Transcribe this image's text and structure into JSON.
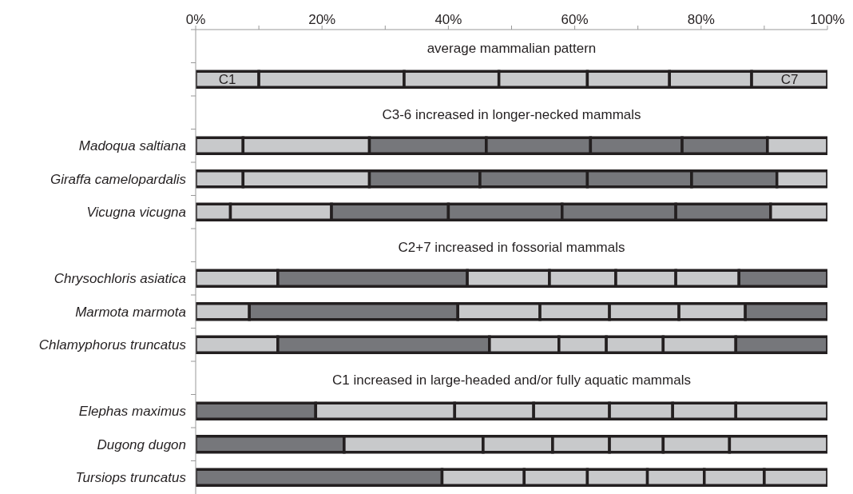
{
  "chart_data": {
    "type": "bar",
    "stacked": true,
    "orientation": "horizontal",
    "categories": [
      null,
      null,
      null,
      "Madoqua saltiana",
      "Giraffa camelopardalis",
      "Vicugna vicugna",
      null,
      "Chrysochloris asiatica",
      "Marmota marmota",
      "Chlamyphorus truncatus",
      null,
      "Elephas maximus",
      "Dugong dugon",
      "Tursiops truncatus"
    ],
    "series": [
      {
        "name": "C1",
        "values": [
          null,
          10,
          null,
          7.5,
          7.5,
          5.5,
          null,
          13,
          8.5,
          13,
          null,
          19,
          23.5,
          39
        ],
        "colors": [
          null,
          "#c8c9cb",
          null,
          "#c8c9cb",
          "#c8c9cb",
          "#c8c9cb",
          null,
          "#c8c9cb",
          "#c8c9cb",
          "#c8c9cb",
          null,
          "#76777b",
          "#76777b",
          "#76777b"
        ]
      },
      {
        "values": [
          null,
          23,
          null,
          20,
          20,
          16,
          null,
          30,
          33,
          33.5,
          null,
          22,
          22,
          13
        ],
        "colors": [
          null,
          "#c8c9cb",
          null,
          "#c8c9cb",
          "#c8c9cb",
          "#c8c9cb",
          null,
          "#76777b",
          "#76777b",
          "#76777b",
          null,
          "#c8c9cb",
          "#c8c9cb",
          "#c8c9cb"
        ]
      },
      {
        "values": [
          null,
          15,
          null,
          18.5,
          17.5,
          18.5,
          null,
          13,
          13,
          11,
          null,
          12.5,
          11,
          10
        ],
        "colors": [
          null,
          "#c8c9cb",
          null,
          "#76777b",
          "#76777b",
          "#76777b",
          null,
          "#c8c9cb",
          "#c8c9cb",
          "#c8c9cb",
          null,
          "#c8c9cb",
          "#c8c9cb",
          "#c8c9cb"
        ]
      },
      {
        "values": [
          null,
          14,
          null,
          16.5,
          17,
          18,
          null,
          10.5,
          11,
          7.5,
          null,
          12,
          9,
          9.5
        ],
        "colors": [
          null,
          "#c8c9cb",
          null,
          "#76777b",
          "#76777b",
          "#76777b",
          null,
          "#c8c9cb",
          "#c8c9cb",
          "#c8c9cb",
          null,
          "#c8c9cb",
          "#c8c9cb",
          "#c8c9cb"
        ]
      },
      {
        "values": [
          null,
          13,
          null,
          14.5,
          16.5,
          18,
          null,
          9.5,
          11,
          9,
          null,
          10,
          8.5,
          9
        ],
        "colors": [
          null,
          "#c8c9cb",
          null,
          "#76777b",
          "#76777b",
          "#76777b",
          null,
          "#c8c9cb",
          "#c8c9cb",
          "#c8c9cb",
          null,
          "#c8c9cb",
          "#c8c9cb",
          "#c8c9cb"
        ]
      },
      {
        "values": [
          null,
          13,
          null,
          13.5,
          13.5,
          15,
          null,
          10,
          10.5,
          11.5,
          null,
          10,
          10.5,
          9.5
        ],
        "colors": [
          null,
          "#c8c9cb",
          null,
          "#76777b",
          "#76777b",
          "#76777b",
          null,
          "#c8c9cb",
          "#c8c9cb",
          "#c8c9cb",
          null,
          "#c8c9cb",
          "#c8c9cb",
          "#c8c9cb"
        ]
      },
      {
        "name": "C7",
        "values": [
          null,
          12,
          null,
          9.5,
          8,
          9,
          null,
          14,
          13,
          14.5,
          null,
          14.5,
          15.5,
          10
        ],
        "colors": [
          null,
          "#c8c9cb",
          null,
          "#c8c9cb",
          "#c8c9cb",
          "#c8c9cb",
          null,
          "#76777b",
          "#76777b",
          "#76777b",
          null,
          "#c8c9cb",
          "#c8c9cb",
          "#c8c9cb"
        ]
      }
    ],
    "xlim": [
      0,
      100
    ],
    "xticks": [
      {
        "value": 0,
        "label": "0%"
      },
      {
        "value": 10,
        "label": null
      },
      {
        "value": 20,
        "label": "20%"
      },
      {
        "value": 30,
        "label": null
      },
      {
        "value": 40,
        "label": "40%"
      },
      {
        "value": 50,
        "label": null
      },
      {
        "value": 60,
        "label": "60%"
      },
      {
        "value": 70,
        "label": null
      },
      {
        "value": 80,
        "label": "80%"
      },
      {
        "value": 90,
        "label": null
      },
      {
        "value": 100,
        "label": "100%"
      }
    ],
    "annotations": [
      "average mammalian pattern",
      "C3-6 increased in longer-necked mammals",
      "C2+7 increased in fossorial mammals",
      "C1 increased in large-headed and/or fully aquatic mammals"
    ],
    "grid": false
  }
}
